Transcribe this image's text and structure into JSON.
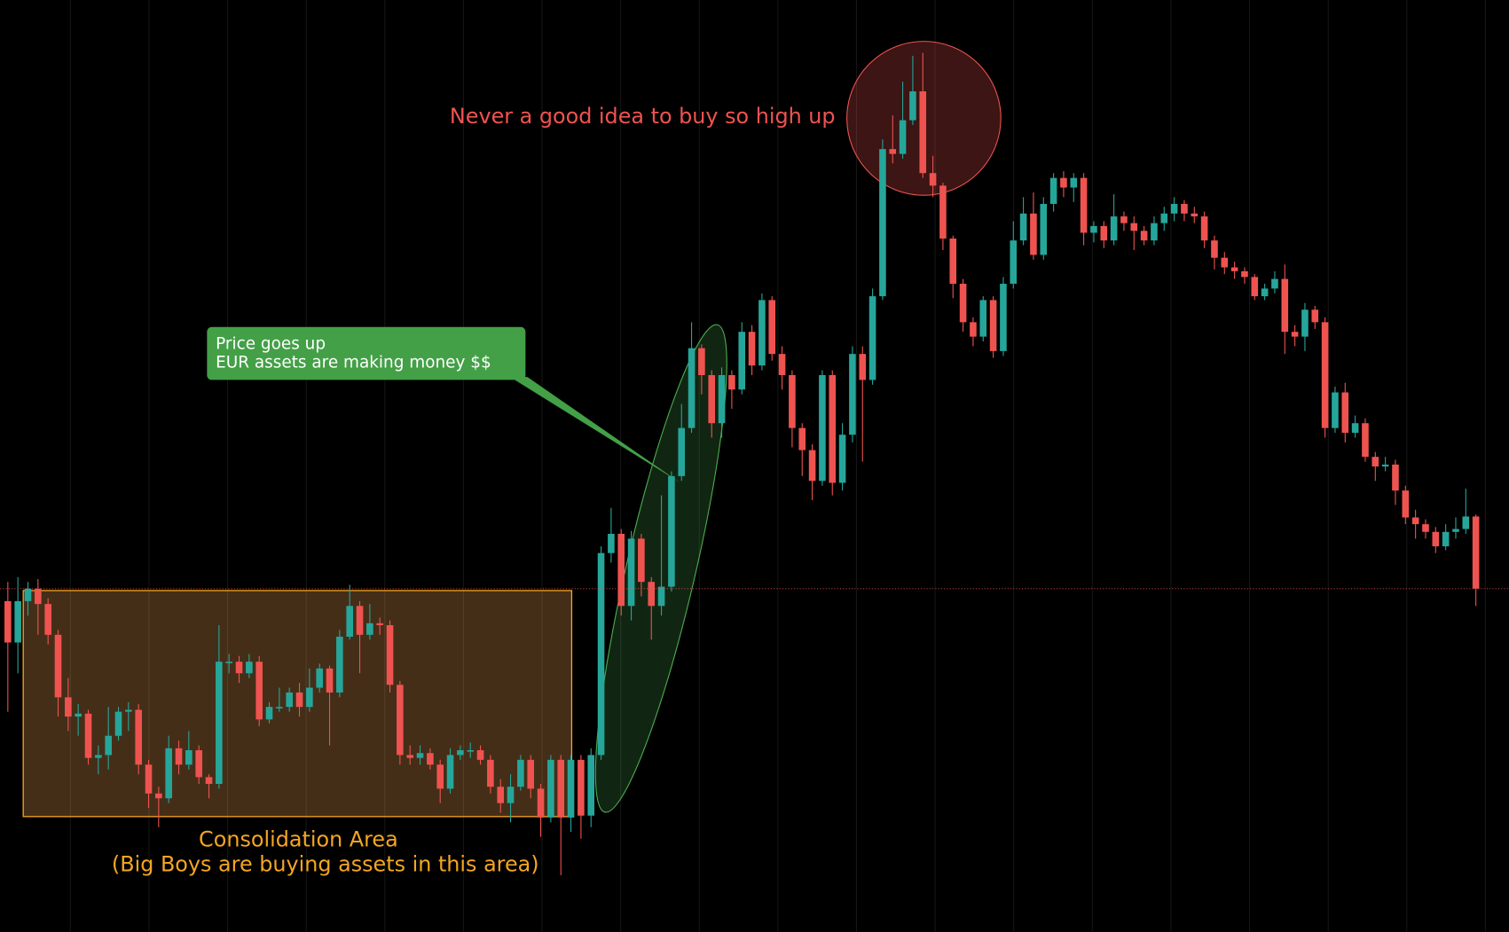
{
  "chart_data": {
    "type": "candlestick",
    "annotations": {
      "peak": "Never a good idea to buy so high up",
      "rally": [
        "Price goes up",
        "EUR assets are making money $$"
      ],
      "consolidation": [
        "Consolidation Area",
        "(Big Boys are buying assets in this area)"
      ]
    },
    "up_color": "#26a69a",
    "down_color": "#ef5350",
    "ylim": [
      31,
      1000
    ],
    "open": [
      375,
      332,
      375,
      388,
      372,
      340,
      275,
      255,
      258,
      212,
      215,
      235,
      260,
      262,
      205,
      175,
      170,
      222,
      205,
      220,
      192,
      185,
      312,
      312,
      300,
      312,
      252,
      265,
      265,
      280,
      265,
      285,
      305,
      280,
      338,
      370,
      340,
      352,
      350,
      288,
      215,
      212,
      217,
      205,
      180,
      215,
      220,
      220,
      210,
      182,
      165,
      182,
      210,
      180,
      150,
      210,
      150,
      210,
      152,
      215,
      425,
      445,
      370,
      440,
      395,
      370,
      390,
      505,
      555,
      638,
      610,
      560,
      610,
      595,
      655,
      620,
      688,
      632,
      610,
      555,
      532,
      500,
      610,
      498,
      548,
      632,
      605,
      692,
      845,
      840,
      875,
      905,
      820,
      807,
      752,
      705,
      665,
      650,
      688,
      635,
      705,
      750,
      778,
      735,
      788,
      815,
      805,
      815,
      758,
      765,
      750,
      775,
      768,
      760,
      750,
      768,
      778,
      788,
      778,
      775,
      750,
      732,
      722,
      718,
      712,
      692,
      700,
      710,
      655,
      650,
      678,
      665,
      555,
      592,
      550,
      560,
      525,
      515,
      517,
      490,
      462,
      455,
      447,
      432,
      447,
      450,
      463
    ],
    "high": [
      395,
      400,
      395,
      398,
      378,
      345,
      295,
      268,
      262,
      225,
      265,
      265,
      270,
      268,
      210,
      182,
      235,
      230,
      240,
      225,
      195,
      350,
      320,
      318,
      320,
      318,
      270,
      285,
      285,
      290,
      305,
      310,
      308,
      345,
      392,
      375,
      372,
      358,
      355,
      292,
      225,
      225,
      222,
      210,
      222,
      225,
      228,
      225,
      215,
      190,
      195,
      215,
      215,
      185,
      215,
      215,
      215,
      215,
      222,
      432,
      472,
      450,
      448,
      445,
      400,
      485,
      510,
      580,
      665,
      642,
      615,
      618,
      615,
      665,
      662,
      695,
      692,
      640,
      615,
      560,
      538,
      615,
      615,
      560,
      640,
      640,
      700,
      855,
      880,
      915,
      942,
      945,
      838,
      810,
      755,
      710,
      670,
      692,
      692,
      712,
      770,
      795,
      800,
      795,
      820,
      822,
      820,
      820,
      770,
      770,
      798,
      780,
      775,
      765,
      775,
      785,
      795,
      792,
      785,
      780,
      755,
      738,
      728,
      722,
      715,
      705,
      718,
      725,
      662,
      685,
      682,
      670,
      598,
      602,
      568,
      565,
      530,
      525,
      522,
      495,
      470,
      460,
      452,
      455,
      462,
      492,
      465
    ],
    "low": [
      260,
      300,
      360,
      340,
      330,
      255,
      240,
      235,
      205,
      195,
      200,
      230,
      240,
      195,
      160,
      140,
      165,
      195,
      200,
      185,
      170,
      180,
      300,
      290,
      295,
      245,
      248,
      260,
      260,
      255,
      260,
      280,
      225,
      275,
      335,
      300,
      335,
      340,
      280,
      205,
      205,
      205,
      200,
      165,
      175,
      210,
      212,
      205,
      175,
      155,
      145,
      178,
      170,
      130,
      145,
      90,
      135,
      128,
      140,
      210,
      415,
      360,
      355,
      380,
      335,
      360,
      385,
      500,
      550,
      590,
      545,
      545,
      575,
      590,
      610,
      615,
      625,
      595,
      535,
      505,
      480,
      495,
      485,
      490,
      540,
      520,
      600,
      688,
      830,
      835,
      870,
      815,
      795,
      740,
      690,
      655,
      640,
      645,
      628,
      630,
      700,
      745,
      730,
      730,
      780,
      795,
      790,
      745,
      748,
      742,
      745,
      760,
      740,
      745,
      745,
      760,
      770,
      770,
      768,
      742,
      720,
      715,
      710,
      705,
      688,
      688,
      695,
      632,
      640,
      635,
      658,
      545,
      550,
      540,
      545,
      520,
      500,
      510,
      475,
      455,
      440,
      440,
      425,
      428,
      440,
      445,
      370
    ],
    "close": [
      332,
      375,
      388,
      372,
      340,
      275,
      255,
      258,
      212,
      215,
      235,
      260,
      262,
      205,
      175,
      170,
      222,
      205,
      220,
      192,
      185,
      312,
      312,
      300,
      312,
      252,
      265,
      265,
      280,
      265,
      285,
      305,
      280,
      338,
      370,
      340,
      352,
      350,
      288,
      215,
      212,
      217,
      205,
      180,
      215,
      220,
      220,
      210,
      182,
      165,
      182,
      210,
      180,
      150,
      210,
      150,
      210,
      152,
      215,
      425,
      445,
      370,
      440,
      395,
      370,
      390,
      505,
      555,
      638,
      610,
      560,
      610,
      595,
      655,
      620,
      688,
      632,
      610,
      555,
      532,
      500,
      610,
      498,
      548,
      632,
      605,
      692,
      845,
      840,
      875,
      905,
      820,
      807,
      752,
      705,
      665,
      650,
      688,
      635,
      705,
      750,
      778,
      735,
      788,
      815,
      805,
      815,
      758,
      765,
      750,
      775,
      768,
      760,
      750,
      768,
      778,
      788,
      778,
      775,
      750,
      732,
      722,
      718,
      712,
      692,
      700,
      710,
      655,
      650,
      678,
      665,
      555,
      592,
      550,
      560,
      525,
      515,
      517,
      490,
      462,
      455,
      447,
      432,
      447,
      450,
      463,
      388
    ]
  }
}
